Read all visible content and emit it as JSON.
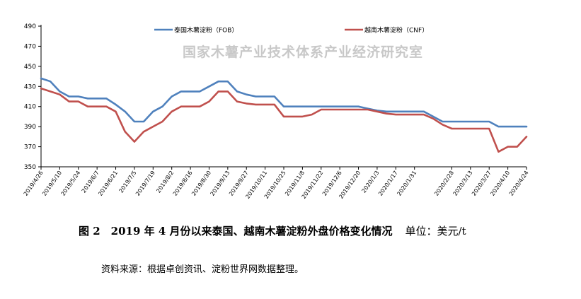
{
  "chart_data": {
    "type": "line",
    "watermark": "国家木薯产业技术体系产业经济研究室",
    "ylim": [
      350,
      490
    ],
    "yticks": [
      350,
      370,
      390,
      410,
      430,
      450,
      470,
      490
    ],
    "grid": false,
    "legend_position": "top",
    "x": [
      "2019/4/26",
      "2019/5/3",
      "2019/5/10",
      "2019/5/17",
      "2019/5/24",
      "2019/5/31",
      "2019/6/7",
      "2019/6/14",
      "2019/6/21",
      "2019/6/28",
      "2019/7/5",
      "2019/7/12",
      "2019/7/19",
      "2019/7/26",
      "2019/8/2",
      "2019/8/9",
      "2019/8/16",
      "2019/8/23",
      "2019/8/30",
      "2019/9/6",
      "2019/9/13",
      "2019/9/20",
      "2019/9/27",
      "2019/10/4",
      "2019/10/11",
      "2019/10/18",
      "2019/10/25",
      "2019/11/1",
      "2019/11/8",
      "2019/11/15",
      "2019/11/22",
      "2019/11/29",
      "2019/12/6",
      "2019/12/13",
      "2019/12/20",
      "2019/12/27",
      "2020/1/3",
      "2020/1/10",
      "2020/1/17",
      "2020/1/24",
      "2020/1/31",
      "2020/2/7",
      "2020/2/14",
      "2020/2/21",
      "2020/2/28",
      "2020/3/6",
      "2020/3/13",
      "2020/3/20",
      "2020/3/27",
      "2020/4/3",
      "2020/4/10",
      "2020/4/17",
      "2020/4/24"
    ],
    "xtick_labels": [
      "2019/4/26",
      "2019/5/10",
      "2019/5/24",
      "2019/6/7",
      "2019/6/21",
      "2019/7/5",
      "2019/7/19",
      "2019/8/2",
      "2019/8/16",
      "2019/8/30",
      "2019/9/13",
      "2019/9/27",
      "2019/10/11",
      "2019/10/25",
      "2019/11/8",
      "2019/11/22",
      "2019/12/6",
      "2019/12/20",
      "2020/1/3",
      "2020/1/17",
      "2020/1/31",
      "2020/2/28",
      "2020/3/13",
      "2020/3/27",
      "2020/4/10",
      "2020/4/24"
    ],
    "series": [
      {
        "name": "泰国木薯淀粉（FOB）",
        "color": "#4f81bd",
        "values": [
          438,
          435,
          425,
          420,
          420,
          418,
          418,
          418,
          412,
          405,
          395,
          395,
          405,
          410,
          420,
          425,
          425,
          425,
          430,
          435,
          435,
          425,
          422,
          420,
          420,
          420,
          410,
          410,
          410,
          410,
          410,
          410,
          410,
          410,
          410,
          408,
          406,
          405,
          405,
          405,
          405,
          405,
          400,
          395,
          395,
          395,
          395,
          395,
          395,
          390,
          390,
          390,
          390
        ]
      },
      {
        "name": "越南木薯淀粉（CNF）",
        "color": "#c0504d",
        "values": [
          428,
          425,
          422,
          415,
          415,
          410,
          410,
          410,
          405,
          385,
          375,
          385,
          390,
          395,
          405,
          410,
          410,
          410,
          415,
          425,
          425,
          415,
          413,
          412,
          412,
          412,
          400,
          400,
          400,
          402,
          407,
          407,
          407,
          407,
          407,
          407,
          405,
          403,
          402,
          402,
          402,
          402,
          398,
          392,
          388,
          388,
          388,
          388,
          388,
          365,
          370,
          370,
          380
        ]
      }
    ]
  },
  "caption": {
    "title": "图 2　2019 年 4 月份以来泰国、越南木薯淀粉外盘价格变化情况",
    "unit": "单位：美元/t"
  },
  "source": "资料来源：根据卓创资讯、淀粉世界网数据整理。"
}
